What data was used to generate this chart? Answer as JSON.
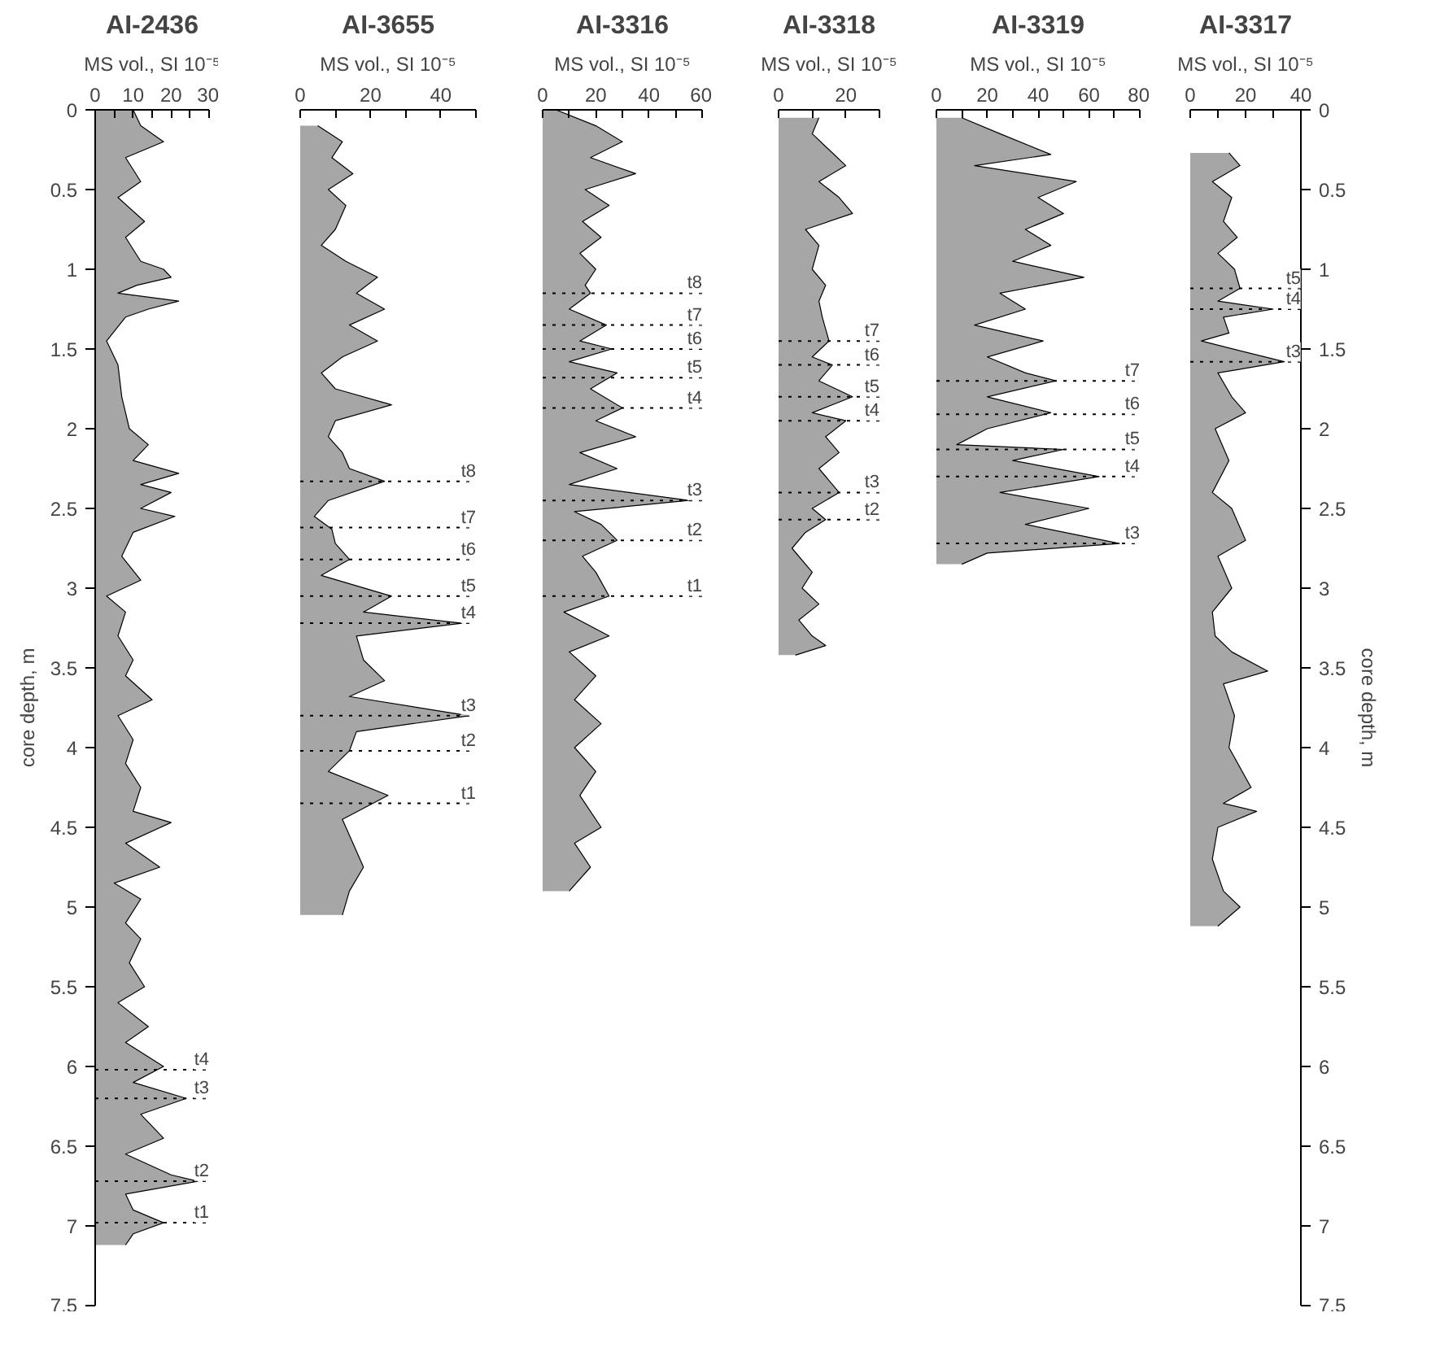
{
  "chart_data": [
    {
      "type": "area",
      "orientation": "horizontal",
      "title": "AI-2436",
      "xlabel": "MS vol., SI 10⁻⁵",
      "ylabel": "core depth, m",
      "color": "#a6a6a6",
      "x": [
        0.0,
        0.1,
        0.2,
        0.3,
        0.45,
        0.55,
        0.7,
        0.8,
        0.95,
        1.0,
        1.05,
        1.1,
        1.15,
        1.2,
        1.25,
        1.3,
        1.45,
        1.6,
        1.8,
        2.0,
        2.1,
        2.2,
        2.28,
        2.35,
        2.4,
        2.5,
        2.55,
        2.65,
        2.8,
        2.95,
        3.05,
        3.15,
        3.3,
        3.45,
        3.55,
        3.7,
        3.8,
        3.95,
        4.1,
        4.25,
        4.4,
        4.47,
        4.6,
        4.75,
        4.85,
        4.95,
        5.1,
        5.2,
        5.35,
        5.5,
        5.6,
        5.75,
        5.85,
        6.0,
        6.1,
        6.2,
        6.3,
        6.45,
        6.55,
        6.68,
        6.72,
        6.8,
        6.9,
        6.98,
        7.05,
        7.12
      ],
      "values": [
        10,
        12,
        18,
        8,
        12,
        6,
        13,
        8,
        12,
        18,
        20,
        11,
        6,
        22,
        14,
        8,
        3,
        6,
        7,
        9,
        14,
        10,
        22,
        12,
        20,
        12,
        21,
        10,
        7,
        12,
        3,
        8,
        6,
        10,
        8,
        15,
        6,
        10,
        8,
        12,
        10,
        20,
        8,
        17,
        5,
        12,
        8,
        12,
        9,
        13,
        6,
        14,
        8,
        18,
        10,
        24,
        12,
        18,
        8,
        20,
        27,
        8,
        10,
        18,
        10,
        8
      ],
      "xlim": [
        0,
        30
      ],
      "xticks": [
        0,
        {
          "value": 5,
          "label": null
        },
        10,
        {
          "value": 15,
          "label": null
        },
        20,
        {
          "value": 25,
          "label": null
        },
        30
      ],
      "ylim": [
        7.5,
        0
      ],
      "yticks": [
        0,
        0.5,
        1,
        1.5,
        2,
        2.5,
        3,
        3.5,
        4,
        4.5,
        5,
        5.5,
        6,
        6.5,
        7,
        7.5
      ],
      "ref_lines": [
        {
          "axis": "y",
          "value": 6.02,
          "label": "t4",
          "line_style": "dotted"
        },
        {
          "axis": "y",
          "value": 6.2,
          "label": "t3",
          "line_style": "dotted"
        },
        {
          "axis": "y",
          "value": 6.72,
          "label": "t2",
          "line_style": "dotted"
        },
        {
          "axis": "y",
          "value": 6.98,
          "label": "t1",
          "line_style": "dotted"
        }
      ]
    },
    {
      "type": "area",
      "orientation": "horizontal",
      "title": "AI-3655",
      "xlabel": "MS vol., SI 10⁻⁵",
      "color": "#a6a6a6",
      "tick_labels": "x",
      "x": [
        0.1,
        0.2,
        0.3,
        0.4,
        0.5,
        0.6,
        0.75,
        0.85,
        0.95,
        1.05,
        1.15,
        1.25,
        1.35,
        1.45,
        1.55,
        1.65,
        1.75,
        1.85,
        1.95,
        2.05,
        2.15,
        2.25,
        2.33,
        2.45,
        2.55,
        2.63,
        2.72,
        2.82,
        2.92,
        3.05,
        3.15,
        3.22,
        3.3,
        3.45,
        3.58,
        3.68,
        3.8,
        3.9,
        4.02,
        4.15,
        4.3,
        4.45,
        4.6,
        4.75,
        4.9,
        5.05
      ],
      "values": [
        5,
        12,
        9,
        15,
        8,
        13,
        10,
        6,
        13,
        22,
        16,
        24,
        14,
        22,
        12,
        6,
        10,
        26,
        10,
        8,
        12,
        14,
        24,
        8,
        4,
        9,
        10,
        14,
        6,
        26,
        18,
        46,
        16,
        18,
        24,
        14,
        48,
        16,
        14,
        8,
        25,
        12,
        15,
        18,
        14,
        12
      ],
      "xlim": [
        0,
        50
      ],
      "xticks": [
        0,
        {
          "value": 10,
          "label": null
        },
        20,
        {
          "value": 30,
          "label": null
        },
        40,
        {
          "value": 50,
          "label": null
        }
      ],
      "ylim": [
        7.5,
        0
      ],
      "yticks": [
        0,
        0.5,
        1,
        1.5,
        2,
        2.5,
        3,
        3.5,
        4,
        4.5,
        5,
        5.5,
        6,
        6.5,
        7,
        7.5
      ],
      "ref_lines": [
        {
          "axis": "y",
          "value": 2.33,
          "label": "t8",
          "line_style": "dotted"
        },
        {
          "axis": "y",
          "value": 2.62,
          "label": "t7",
          "line_style": "dotted"
        },
        {
          "axis": "y",
          "value": 2.82,
          "label": "t6",
          "line_style": "dotted"
        },
        {
          "axis": "y",
          "value": 3.05,
          "label": "t5",
          "line_style": "dotted"
        },
        {
          "axis": "y",
          "value": 3.22,
          "label": "t4",
          "line_style": "dotted"
        },
        {
          "axis": "y",
          "value": 3.8,
          "label": "t3",
          "line_style": "dotted"
        },
        {
          "axis": "y",
          "value": 4.02,
          "label": "t2",
          "line_style": "dotted"
        },
        {
          "axis": "y",
          "value": 4.35,
          "label": "t1",
          "line_style": "dotted"
        }
      ]
    },
    {
      "type": "area",
      "orientation": "horizontal",
      "title": "AI-3316",
      "xlabel": "MS vol., SI 10⁻⁵",
      "color": "#a6a6a6",
      "tick_labels": "x",
      "x": [
        0,
        0.1,
        0.2,
        0.3,
        0.4,
        0.5,
        0.6,
        0.7,
        0.8,
        0.9,
        1.0,
        1.1,
        1.15,
        1.25,
        1.35,
        1.45,
        1.5,
        1.58,
        1.65,
        1.75,
        1.87,
        1.95,
        2.05,
        2.15,
        2.25,
        2.35,
        2.45,
        2.52,
        2.6,
        2.7,
        2.8,
        2.9,
        3.05,
        3.15,
        3.3,
        3.4,
        3.55,
        3.7,
        3.85,
        4.0,
        4.15,
        4.3,
        4.5,
        4.6,
        4.75,
        4.9
      ],
      "values": [
        5,
        20,
        30,
        18,
        35,
        16,
        25,
        15,
        22,
        14,
        20,
        16,
        18,
        10,
        24,
        14,
        26,
        10,
        28,
        18,
        30,
        20,
        35,
        14,
        28,
        10,
        55,
        12,
        22,
        28,
        15,
        20,
        25,
        8,
        25,
        10,
        20,
        12,
        22,
        12,
        20,
        14,
        22,
        12,
        18,
        10
      ],
      "xlim": [
        0,
        60
      ],
      "xticks": [
        0,
        {
          "value": 10,
          "label": null
        },
        20,
        {
          "value": 30,
          "label": null
        },
        40,
        {
          "value": 50,
          "label": null
        },
        60
      ],
      "ylim": [
        7.5,
        0
      ],
      "yticks": [
        0,
        0.5,
        1,
        1.5,
        2,
        2.5,
        3,
        3.5,
        4,
        4.5,
        5,
        5.5,
        6,
        6.5,
        7,
        7.5
      ],
      "ref_lines": [
        {
          "axis": "y",
          "value": 1.15,
          "label": "t8",
          "line_style": "dotted"
        },
        {
          "axis": "y",
          "value": 1.35,
          "label": "t7",
          "line_style": "dotted"
        },
        {
          "axis": "y",
          "value": 1.5,
          "label": "t6",
          "line_style": "dotted"
        },
        {
          "axis": "y",
          "value": 1.68,
          "label": "t5",
          "line_style": "dotted"
        },
        {
          "axis": "y",
          "value": 1.87,
          "label": "t4",
          "line_style": "dotted"
        },
        {
          "axis": "y",
          "value": 2.45,
          "label": "t3",
          "line_style": "dotted"
        },
        {
          "axis": "y",
          "value": 2.7,
          "label": "t2",
          "line_style": "dotted"
        },
        {
          "axis": "y",
          "value": 3.05,
          "label": "t1",
          "line_style": "dotted"
        }
      ]
    },
    {
      "type": "area",
      "orientation": "horizontal",
      "title": "AI-3318",
      "xlabel": "MS vol., SI 10⁻⁵",
      "color": "#a6a6a6",
      "tick_labels": "x",
      "x": [
        0.05,
        0.15,
        0.25,
        0.35,
        0.45,
        0.55,
        0.65,
        0.75,
        0.85,
        1.0,
        1.1,
        1.2,
        1.3,
        1.45,
        1.55,
        1.6,
        1.7,
        1.8,
        1.9,
        1.95,
        2.05,
        2.15,
        2.25,
        2.4,
        2.5,
        2.57,
        2.65,
        2.75,
        2.9,
        3.0,
        3.1,
        3.2,
        3.3,
        3.36,
        3.42
      ],
      "values": [
        12,
        10,
        15,
        20,
        12,
        18,
        22,
        8,
        12,
        10,
        14,
        12,
        13,
        15,
        10,
        16,
        12,
        22,
        10,
        20,
        14,
        18,
        12,
        18,
        10,
        14,
        8,
        4,
        10,
        7,
        12,
        6,
        10,
        14,
        5
      ],
      "xlim": [
        0,
        30
      ],
      "xticks": [
        0,
        {
          "value": 10,
          "label": null
        },
        20,
        {
          "value": 30,
          "label": null
        }
      ],
      "ylim": [
        7.5,
        0
      ],
      "yticks": [
        0,
        0.5,
        1,
        1.5,
        2,
        2.5,
        3,
        3.5,
        4,
        4.5,
        5,
        5.5,
        6,
        6.5,
        7,
        7.5
      ],
      "ref_lines": [
        {
          "axis": "y",
          "value": 1.45,
          "label": "t7",
          "line_style": "dotted"
        },
        {
          "axis": "y",
          "value": 1.6,
          "label": "t6",
          "line_style": "dotted"
        },
        {
          "axis": "y",
          "value": 1.8,
          "label": "t5",
          "line_style": "dotted"
        },
        {
          "axis": "y",
          "value": 1.95,
          "label": "t4",
          "line_style": "dotted"
        },
        {
          "axis": "y",
          "value": 2.4,
          "label": "t3",
          "line_style": "dotted"
        },
        {
          "axis": "y",
          "value": 2.57,
          "label": "t2",
          "line_style": "dotted"
        }
      ]
    },
    {
      "type": "area",
      "orientation": "horizontal",
      "title": "AI-3319",
      "xlabel": "MS vol., SI 10⁻⁵",
      "color": "#a6a6a6",
      "tick_labels": "x",
      "x": [
        0.05,
        0.15,
        0.28,
        0.35,
        0.45,
        0.55,
        0.65,
        0.75,
        0.85,
        0.95,
        1.05,
        1.15,
        1.25,
        1.35,
        1.45,
        1.55,
        1.65,
        1.7,
        1.8,
        1.9,
        2.0,
        2.1,
        2.13,
        2.2,
        2.3,
        2.4,
        2.5,
        2.6,
        2.72,
        2.78,
        2.85
      ],
      "values": [
        10,
        25,
        45,
        15,
        55,
        40,
        50,
        35,
        45,
        30,
        58,
        25,
        35,
        15,
        42,
        20,
        35,
        47,
        20,
        45,
        20,
        8,
        50,
        30,
        64,
        25,
        60,
        35,
        72,
        20,
        10
      ],
      "xlim": [
        0,
        80
      ],
      "xticks": [
        0,
        {
          "value": 10,
          "label": null
        },
        20,
        {
          "value": 30,
          "label": null
        },
        40,
        {
          "value": 50,
          "label": null
        },
        60,
        {
          "value": 70,
          "label": null
        },
        80
      ],
      "ylim": [
        7.5,
        0
      ],
      "yticks": [
        0,
        0.5,
        1,
        1.5,
        2,
        2.5,
        3,
        3.5,
        4,
        4.5,
        5,
        5.5,
        6,
        6.5,
        7,
        7.5
      ],
      "ref_lines": [
        {
          "axis": "y",
          "value": 1.7,
          "label": "t7",
          "line_style": "dotted"
        },
        {
          "axis": "y",
          "value": 1.91,
          "label": "t6",
          "line_style": "dotted"
        },
        {
          "axis": "y",
          "value": 2.13,
          "label": "t5",
          "line_style": "dotted"
        },
        {
          "axis": "y",
          "value": 2.3,
          "label": "t4",
          "line_style": "dotted"
        },
        {
          "axis": "y",
          "value": 2.72,
          "label": "t3",
          "line_style": "dotted"
        }
      ]
    },
    {
      "type": "area",
      "orientation": "horizontal",
      "title": "AI-3317",
      "xlabel": "MS vol., SI 10⁻⁵",
      "ylabel": "core depth, m",
      "color": "#a6a6a6",
      "x": [
        0.27,
        0.35,
        0.45,
        0.55,
        0.7,
        0.8,
        0.9,
        1.0,
        1.12,
        1.2,
        1.25,
        1.3,
        1.4,
        1.45,
        1.58,
        1.65,
        1.8,
        1.9,
        2.0,
        2.2,
        2.4,
        2.5,
        2.7,
        2.8,
        3.0,
        3.15,
        3.3,
        3.4,
        3.52,
        3.6,
        3.8,
        4.0,
        4.25,
        4.35,
        4.4,
        4.5,
        4.7,
        4.9,
        5.0,
        5.12
      ],
      "values": [
        14,
        18,
        8,
        15,
        12,
        17,
        10,
        16,
        18,
        10,
        30,
        12,
        14,
        4,
        34,
        10,
        15,
        20,
        9,
        14,
        8,
        15,
        20,
        10,
        15,
        8,
        9,
        15,
        28,
        12,
        16,
        14,
        22,
        12,
        24,
        10,
        8,
        12,
        18,
        10
      ],
      "xlim": [
        0,
        40
      ],
      "xticks": [
        0,
        {
          "value": 10,
          "label": null
        },
        20,
        {
          "value": 30,
          "label": null
        },
        40
      ],
      "ylim": [
        7.5,
        0
      ],
      "yticks": [
        0,
        0.5,
        1,
        1.5,
        2,
        2.5,
        3,
        3.5,
        4,
        4.5,
        5,
        5.5,
        6,
        6.5,
        7,
        7.5
      ],
      "ref_lines": [
        {
          "axis": "y",
          "value": 1.12,
          "label": "t5",
          "line_style": "dotted"
        },
        {
          "axis": "y",
          "value": 1.25,
          "label": "t4",
          "line_style": "dotted"
        },
        {
          "axis": "y",
          "value": 1.58,
          "label": "t3",
          "line_style": "dotted"
        }
      ]
    }
  ]
}
